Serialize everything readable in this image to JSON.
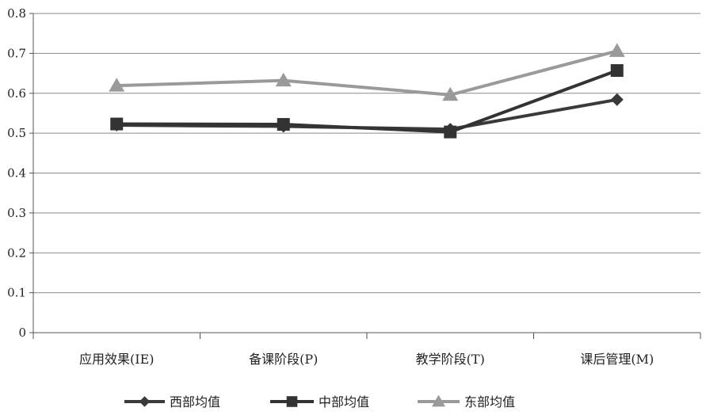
{
  "chart_data": {
    "type": "line",
    "categories": [
      "应用效果(IE)",
      "备课阶段(P)",
      "教学阶段(T)",
      "课后管理(M)"
    ],
    "series": [
      {
        "name": "西部均值",
        "values": [
          0.52,
          0.517,
          0.51,
          0.584
        ],
        "color": "#3a3a3a",
        "marker": "diamond"
      },
      {
        "name": "中部均值",
        "values": [
          0.523,
          0.522,
          0.503,
          0.657
        ],
        "color": "#333333",
        "marker": "square"
      },
      {
        "name": "东部均值",
        "values": [
          0.619,
          0.632,
          0.596,
          0.706
        ],
        "color": "#9a9a9a",
        "marker": "triangle"
      }
    ],
    "yticks": [
      "0",
      "0.1",
      "0.2",
      "0.3",
      "0.4",
      "0.5",
      "0.6",
      "0.7",
      "0.8"
    ],
    "ylim": [
      0,
      0.8
    ],
    "grid": true,
    "legend_position": "bottom",
    "title": "",
    "xlabel": "",
    "ylabel": ""
  }
}
